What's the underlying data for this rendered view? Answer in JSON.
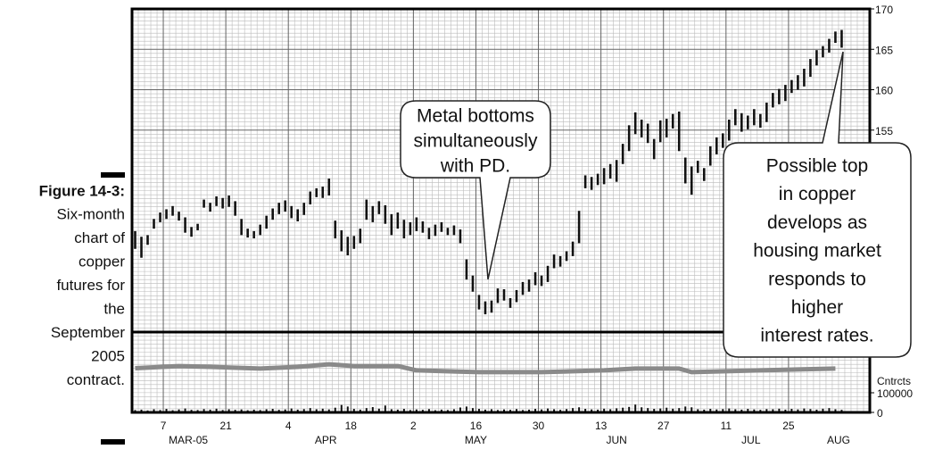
{
  "caption": {
    "label": "Figure 14-3:",
    "lines": [
      "Six-month",
      "chart of",
      "copper",
      "futures for",
      "the",
      "September",
      "2005",
      "contract."
    ]
  },
  "chart_data": {
    "type": "hlc",
    "x": [
      0,
      1,
      2,
      3,
      4,
      5,
      6,
      7,
      8,
      9,
      10,
      11,
      12,
      13,
      14,
      15,
      16,
      17,
      18,
      19,
      20,
      21,
      22,
      23,
      24,
      25,
      26,
      27,
      28,
      29,
      30,
      31,
      32,
      33,
      34,
      35,
      36,
      37,
      38,
      39,
      40,
      41,
      42,
      43,
      44,
      45,
      46,
      47,
      48,
      49,
      50,
      51,
      52,
      53,
      54,
      55,
      56,
      57,
      58,
      59,
      60,
      61,
      62,
      63,
      64,
      65,
      66,
      67,
      68,
      69,
      70,
      71,
      72,
      73,
      74,
      75,
      76,
      77,
      78,
      79,
      80,
      81,
      82,
      83,
      84,
      85,
      86,
      87,
      88,
      89,
      90,
      91,
      92,
      93,
      94,
      95,
      96,
      97,
      98,
      99,
      100,
      101,
      102,
      103,
      104,
      105,
      106,
      107,
      108,
      109,
      110,
      111,
      112,
      113
    ],
    "high": [
      142.5,
      141.8,
      142.0,
      144.0,
      144.8,
      145.2,
      145.6,
      144.9,
      144.2,
      143.0,
      143.4,
      146.4,
      146.0,
      146.8,
      146.6,
      146.9,
      146.2,
      144.0,
      142.8,
      142.5,
      143.3,
      144.4,
      145.3,
      146.0,
      146.3,
      145.6,
      145.2,
      146.0,
      147.4,
      147.8,
      148.0,
      149.0,
      143.8,
      142.6,
      141.8,
      141.9,
      142.8,
      146.4,
      145.6,
      146.2,
      145.7,
      144.6,
      144.8,
      143.9,
      143.6,
      144.2,
      143.7,
      142.9,
      143.3,
      143.6,
      142.9,
      143.2,
      142.7,
      139.0,
      137.0,
      134.6,
      133.8,
      133.9,
      135.4,
      135.3,
      134.2,
      135.2,
      136.2,
      136.5,
      137.4,
      137.0,
      138.2,
      139.6,
      139.4,
      140.0,
      141.2,
      145.0,
      149.4,
      149.2,
      149.6,
      150.3,
      150.8,
      151.3,
      153.3,
      155.6,
      157.2,
      156.3,
      155.8,
      153.9,
      156.2,
      156.4,
      157.0,
      157.3,
      151.6,
      150.5,
      151.2,
      150.3,
      153.0,
      154.1,
      154.6,
      156.3,
      157.6,
      157.1,
      156.8,
      157.6,
      157.0,
      158.4,
      159.6,
      160.1,
      160.6,
      161.2,
      161.8,
      162.6,
      163.8,
      164.9,
      165.4,
      166.3,
      167.2,
      167.4
    ],
    "low": [
      140.3,
      139.2,
      140.8,
      142.8,
      143.6,
      144.0,
      144.4,
      143.8,
      142.3,
      141.8,
      142.6,
      145.4,
      144.9,
      145.6,
      145.3,
      145.5,
      144.4,
      142.0,
      141.7,
      141.6,
      142.0,
      142.8,
      143.9,
      144.6,
      144.9,
      144.1,
      143.7,
      144.5,
      145.8,
      146.7,
      146.6,
      146.9,
      141.6,
      140.0,
      139.5,
      140.3,
      141.0,
      143.9,
      143.6,
      144.6,
      143.4,
      142.0,
      142.8,
      141.6,
      142.0,
      142.5,
      142.3,
      141.5,
      141.9,
      142.4,
      142.0,
      142.0,
      141.0,
      136.5,
      135.0,
      132.8,
      132.2,
      132.4,
      133.6,
      133.9,
      133.0,
      133.7,
      134.6,
      135.0,
      135.8,
      135.7,
      136.2,
      137.9,
      138.1,
      138.8,
      139.4,
      141.0,
      147.8,
      147.6,
      148.2,
      148.3,
      149.0,
      148.6,
      150.8,
      152.4,
      154.5,
      154.1,
      153.4,
      151.4,
      153.5,
      154.1,
      155.2,
      152.4,
      148.4,
      147.0,
      149.7,
      148.7,
      150.6,
      152.0,
      152.8,
      153.7,
      155.6,
      154.8,
      155.1,
      155.6,
      155.3,
      156.0,
      157.8,
      158.2,
      158.6,
      159.6,
      160.0,
      160.4,
      161.6,
      163.0,
      164.0,
      164.6,
      165.8,
      165.2
    ],
    "ylim": [
      130,
      170
    ],
    "yticks": [
      155,
      160,
      165,
      170
    ],
    "xlim": [
      0,
      118
    ],
    "xticks": [
      {
        "value": 5,
        "label": "7"
      },
      {
        "value": 15,
        "label": "21"
      },
      {
        "value": 25,
        "label": "4"
      },
      {
        "value": 35,
        "label": "18"
      },
      {
        "value": 45,
        "label": "2"
      },
      {
        "value": 55,
        "label": "16"
      },
      {
        "value": 65,
        "label": "30"
      },
      {
        "value": 75,
        "label": "13"
      },
      {
        "value": 85,
        "label": "27"
      },
      {
        "value": 95,
        "label": "11"
      },
      {
        "value": 105,
        "label": "25"
      }
    ],
    "month_labels": [
      {
        "value": 9,
        "label": "MAR-05"
      },
      {
        "value": 31,
        "label": "APR"
      },
      {
        "value": 55,
        "label": "MAY"
      },
      {
        "value": 77.5,
        "label": "JUN"
      },
      {
        "value": 99,
        "label": "JUL"
      },
      {
        "value": 113,
        "label": "AUG"
      }
    ],
    "grid": true,
    "color": "#111111",
    "lower_panel": {
      "ylabel": "Cntrcts",
      "ylim": [
        0,
        409000
      ],
      "yticks": [
        0,
        100000
      ],
      "open_interest": {
        "color": "#8a8a8a",
        "x": [
          0,
          7,
          12,
          20,
          26,
          31,
          35,
          42,
          45,
          55,
          65,
          75,
          80,
          87,
          89,
          100,
          112
        ],
        "values": [
          225000,
          236000,
          232000,
          223000,
          232000,
          245000,
          236000,
          236000,
          214000,
          205000,
          205000,
          214000,
          223000,
          223000,
          205000,
          214000,
          223000
        ]
      },
      "volume": [
        12000,
        14000,
        10000,
        16000,
        12000,
        18000,
        11000,
        15000,
        20000,
        13000,
        12000,
        17000,
        14000,
        19000,
        12000,
        16000,
        13000,
        15000,
        11000,
        14000,
        12000,
        16000,
        18000,
        13000,
        15000,
        20000,
        14000,
        17000,
        22000,
        16000,
        19000,
        15000,
        24000,
        38000,
        30000,
        18000,
        14000,
        22000,
        27000,
        19000,
        35000,
        16000,
        14000,
        18000,
        12000,
        15000,
        13000,
        17000,
        11000,
        14000,
        12000,
        16000,
        25000,
        30000,
        22000,
        18000,
        14000,
        16000,
        12000,
        15000,
        13000,
        17000,
        12000,
        14000,
        18000,
        15000,
        20000,
        16000,
        13000,
        17000,
        22000,
        26000,
        18000,
        15000,
        14000,
        19000,
        16000,
        21000,
        24000,
        28000,
        40000,
        26000,
        22000,
        18000,
        20000,
        24000,
        19000,
        22000,
        30000,
        26000,
        16000,
        14000,
        18000,
        15000,
        17000,
        20000,
        16000,
        14000,
        18000,
        15000,
        13000,
        17000,
        16000,
        19000,
        14000,
        18000,
        15000,
        20000,
        17000,
        14000,
        19000,
        22000,
        16000,
        13000
      ]
    }
  },
  "annotations": [
    {
      "lines": [
        "Metal bottoms",
        "simultaneously",
        "with PD."
      ]
    },
    {
      "lines": [
        "Possible top",
        "in copper",
        "develops as",
        "housing market",
        "responds to",
        "higher",
        "interest rates."
      ]
    }
  ]
}
